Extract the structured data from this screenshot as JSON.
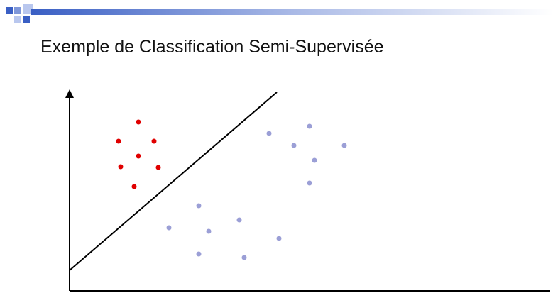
{
  "title": "Exemple de Classification Semi-Supervisée"
}
